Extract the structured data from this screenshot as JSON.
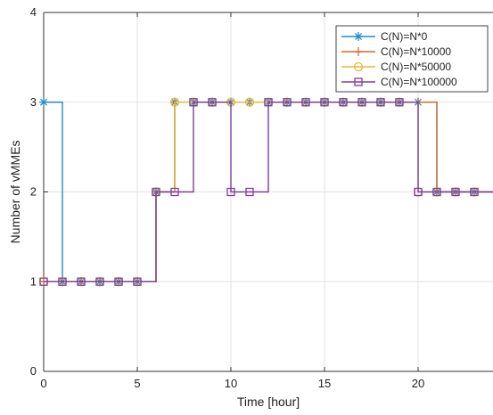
{
  "chart_data": {
    "type": "line",
    "step": "post",
    "xlabel": "Time [hour]",
    "ylabel": "Number of vMMEs",
    "xlim": [
      0,
      24
    ],
    "ylim": [
      0,
      4
    ],
    "xticks": [
      0,
      5,
      10,
      15,
      20
    ],
    "yticks": [
      0,
      1,
      2,
      3,
      4
    ],
    "grid": true,
    "legend_position": "top-right",
    "x": [
      0,
      1,
      2,
      3,
      4,
      5,
      6,
      7,
      8,
      9,
      10,
      11,
      12,
      13,
      14,
      15,
      16,
      17,
      18,
      19,
      20,
      21,
      22,
      23,
      24
    ],
    "series": [
      {
        "name": "C(N)=N*0",
        "color": "#1f8fc8",
        "marker": "asterisk",
        "values": [
          3,
          1,
          1,
          1,
          1,
          1,
          2,
          3,
          3,
          3,
          3,
          3,
          3,
          3,
          3,
          3,
          3,
          3,
          3,
          3,
          3,
          2,
          2,
          2,
          2
        ]
      },
      {
        "name": "C(N)=N*10000",
        "color": "#d9682a",
        "marker": "plus",
        "values": [
          1,
          1,
          1,
          1,
          1,
          1,
          2,
          3,
          3,
          3,
          3,
          3,
          3,
          3,
          3,
          3,
          3,
          3,
          3,
          3,
          3,
          2,
          2,
          2,
          2
        ]
      },
      {
        "name": "C(N)=N*50000",
        "color": "#e8b83a",
        "marker": "circle",
        "values": [
          1,
          1,
          1,
          1,
          1,
          1,
          2,
          3,
          3,
          3,
          3,
          3,
          3,
          3,
          3,
          3,
          3,
          3,
          3,
          3,
          2,
          2,
          2,
          2,
          2
        ]
      },
      {
        "name": "C(N)=N*100000",
        "color": "#7e3f98",
        "marker": "square",
        "values": [
          1,
          1,
          1,
          1,
          1,
          1,
          2,
          2,
          3,
          3,
          2,
          2,
          3,
          3,
          3,
          3,
          3,
          3,
          3,
          3,
          2,
          2,
          2,
          2,
          2
        ]
      }
    ]
  }
}
